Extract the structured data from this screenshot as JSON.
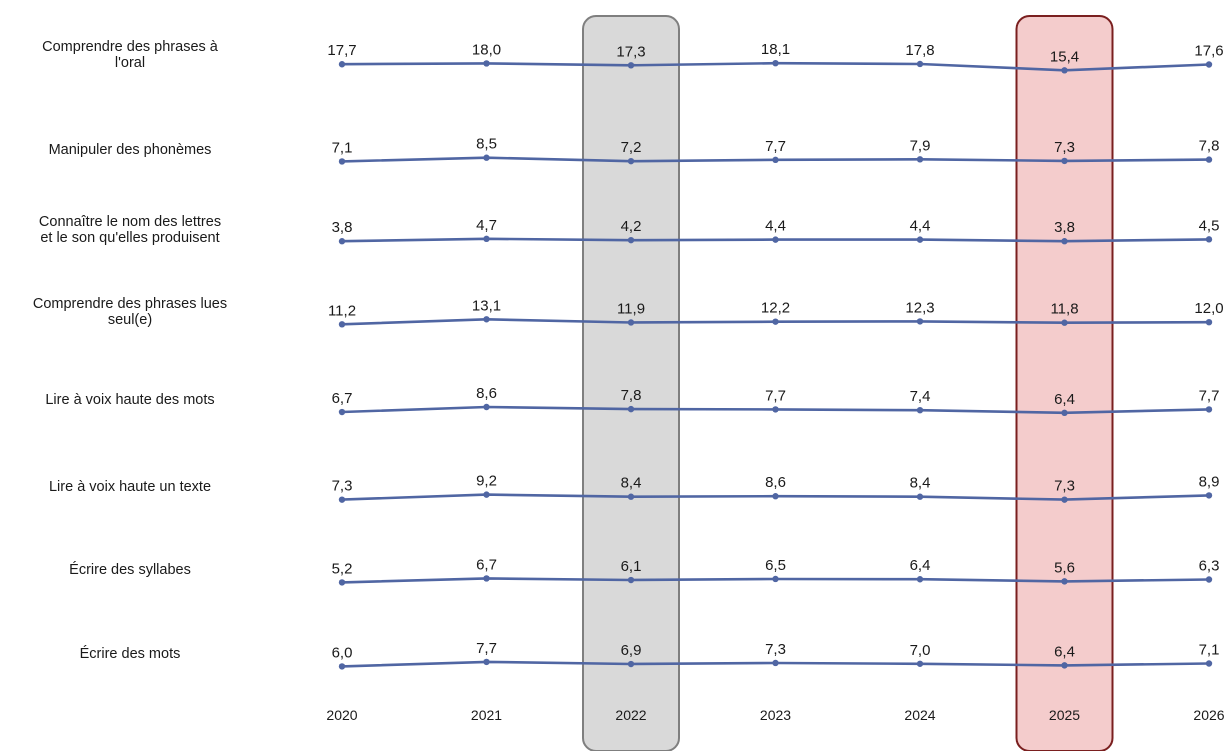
{
  "chart_data": {
    "type": "line",
    "x": [
      "2020",
      "2021",
      "2022",
      "2023",
      "2024",
      "2025",
      "2026"
    ],
    "rows": [
      {
        "label_lines": [
          "Comprendre des phrases à",
          "l'oral"
        ],
        "values": [
          17.7,
          18.0,
          17.3,
          18.1,
          17.8,
          15.4,
          17.6
        ],
        "value_labels": [
          "17,7",
          "18,0",
          "17,3",
          "18,1",
          "17,8",
          "15,4",
          "17,6"
        ]
      },
      {
        "label_lines": [
          "Manipuler des phonèmes"
        ],
        "values": [
          7.1,
          8.5,
          7.2,
          7.7,
          7.9,
          7.3,
          7.8
        ],
        "value_labels": [
          "7,1",
          "8,5",
          "7,2",
          "7,7",
          "7,9",
          "7,3",
          "7,8"
        ]
      },
      {
        "label_lines": [
          "Connaître le nom des lettres",
          "et le son qu'elles produisent"
        ],
        "values": [
          3.8,
          4.7,
          4.2,
          4.4,
          4.4,
          3.8,
          4.5
        ],
        "value_labels": [
          "3,8",
          "4,7",
          "4,2",
          "4,4",
          "4,4",
          "3,8",
          "4,5"
        ]
      },
      {
        "label_lines": [
          "Comprendre des phrases lues",
          "seul(e)"
        ],
        "values": [
          11.2,
          13.1,
          11.9,
          12.2,
          12.3,
          11.8,
          12.0
        ],
        "value_labels": [
          "11,2",
          "13,1",
          "11,9",
          "12,2",
          "12,3",
          "11,8",
          "12,0"
        ]
      },
      {
        "label_lines": [
          "Lire à voix haute des mots"
        ],
        "values": [
          6.7,
          8.6,
          7.8,
          7.7,
          7.4,
          6.4,
          7.7
        ],
        "value_labels": [
          "6,7",
          "8,6",
          "7,8",
          "7,7",
          "7,4",
          "6,4",
          "7,7"
        ]
      },
      {
        "label_lines": [
          "Lire à voix haute un texte"
        ],
        "values": [
          7.3,
          9.2,
          8.4,
          8.6,
          8.4,
          7.3,
          8.9
        ],
        "value_labels": [
          "7,3",
          "9,2",
          "8,4",
          "8,6",
          "8,4",
          "7,3",
          "8,9"
        ]
      },
      {
        "label_lines": [
          "Écrire des syllabes"
        ],
        "values": [
          5.2,
          6.7,
          6.1,
          6.5,
          6.4,
          5.6,
          6.3
        ],
        "value_labels": [
          "5,2",
          "6,7",
          "6,1",
          "6,5",
          "6,4",
          "5,6",
          "6,3"
        ]
      },
      {
        "label_lines": [
          "Écrire des mots"
        ],
        "values": [
          6.0,
          7.7,
          6.9,
          7.3,
          7.0,
          6.4,
          7.1
        ],
        "value_labels": [
          "6,0",
          "7,7",
          "6,9",
          "7,3",
          "7,0",
          "6,4",
          "7,1"
        ]
      }
    ],
    "highlights": [
      {
        "year": "2022",
        "color": "#d9d9d9",
        "border": "#7f7f7f"
      },
      {
        "year": "2025",
        "color": "#f4cccc",
        "border": "#7a1f1f"
      }
    ],
    "line_color": "#5066a3",
    "grid": false,
    "legend": "none"
  }
}
